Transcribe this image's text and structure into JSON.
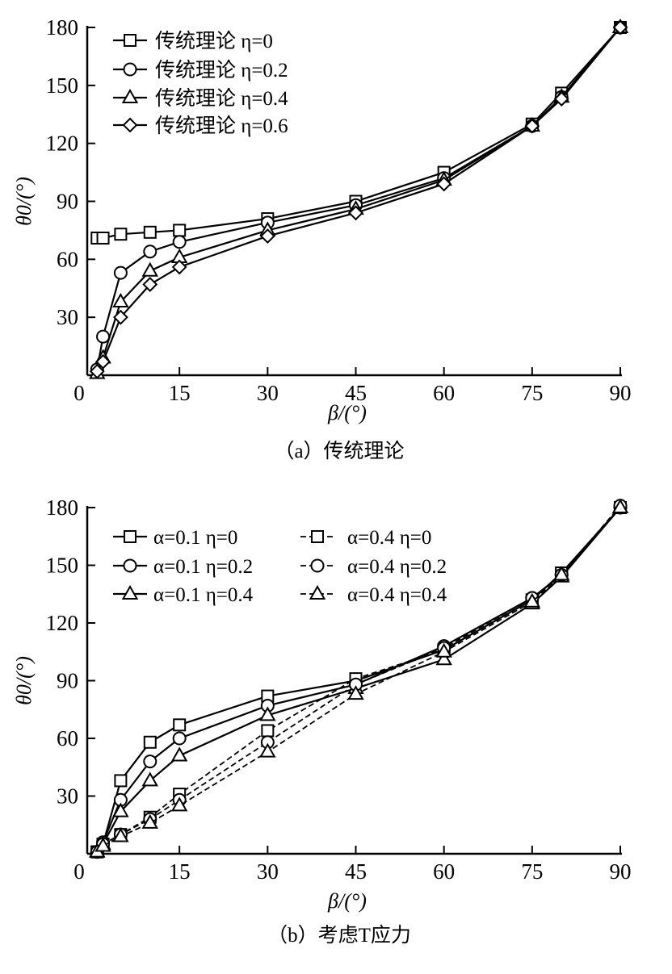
{
  "chart_data": [
    {
      "type": "line",
      "caption": "（a）传统理论",
      "xlabel": "β/(°)",
      "ylabel": "θ0/(°)",
      "xlim": [
        0,
        90
      ],
      "ylim": [
        0,
        180
      ],
      "xticks": [
        0,
        15,
        30,
        45,
        60,
        75,
        90
      ],
      "yticks": [
        30,
        60,
        90,
        120,
        150,
        180
      ],
      "legend_position": "top-left",
      "x": [
        1,
        2,
        5,
        10,
        15,
        30,
        45,
        60,
        75,
        80,
        90
      ],
      "series": [
        {
          "name": "传统理论 η=0",
          "marker": "square",
          "dash": false,
          "values": [
            71,
            71,
            73,
            74,
            75,
            81,
            90,
            105,
            130,
            146,
            180
          ]
        },
        {
          "name": "传统理论 η=0.2",
          "marker": "circle",
          "dash": false,
          "values": [
            3,
            20,
            53,
            64,
            69,
            79,
            88,
            102,
            129,
            144,
            180
          ]
        },
        {
          "name": "传统理论 η=0.4",
          "marker": "triangle",
          "dash": false,
          "values": [
            1,
            9,
            38,
            54,
            61,
            75,
            86,
            101,
            129,
            144,
            180
          ]
        },
        {
          "name": "传统理论 η=0.6",
          "marker": "diamond",
          "dash": false,
          "values": [
            2,
            7,
            30,
            47,
            56,
            72,
            84,
            99,
            129,
            143,
            180
          ]
        }
      ]
    },
    {
      "type": "line",
      "caption": "（b）考虑T应力",
      "xlabel": "β/(°)",
      "ylabel": "θ0/(°)",
      "xlim": [
        0,
        90
      ],
      "ylim": [
        0,
        180
      ],
      "xticks": [
        0,
        15,
        30,
        45,
        60,
        75,
        90
      ],
      "yticks": [
        30,
        60,
        90,
        120,
        150,
        180
      ],
      "legend_position": "top-left",
      "x": [
        1,
        2,
        5,
        10,
        15,
        30,
        45,
        60,
        75,
        80,
        90
      ],
      "series": [
        {
          "name": "α=0.1 η=0",
          "marker": "square",
          "dash": false,
          "values": [
            1,
            5,
            38,
            58,
            67,
            82,
            90,
            106,
            132,
            146,
            180
          ]
        },
        {
          "name": "α=0.1 η=0.2",
          "marker": "circle",
          "dash": false,
          "values": [
            1,
            6,
            28,
            48,
            60,
            77,
            88,
            108,
            133,
            145,
            180
          ]
        },
        {
          "name": "α=0.1 η=0.4",
          "marker": "triangle",
          "dash": false,
          "values": [
            1,
            5,
            22,
            38,
            51,
            72,
            86,
            101,
            130,
            144,
            180
          ]
        },
        {
          "name": "α=0.4 η=0",
          "marker": "square",
          "dash": true,
          "values": [
            1,
            5,
            10,
            19,
            31,
            64,
            91,
            106,
            132,
            146,
            180
          ]
        },
        {
          "name": "α=0.4 η=0.2",
          "marker": "circle",
          "dash": true,
          "values": [
            1,
            5,
            10,
            18,
            28,
            58,
            88,
            107,
            133,
            145,
            181
          ]
        },
        {
          "name": "α=0.4 η=0.4",
          "marker": "triangle",
          "dash": true,
          "values": [
            1,
            4,
            9,
            16,
            25,
            53,
            83,
            105,
            131,
            145,
            180
          ]
        }
      ]
    }
  ]
}
